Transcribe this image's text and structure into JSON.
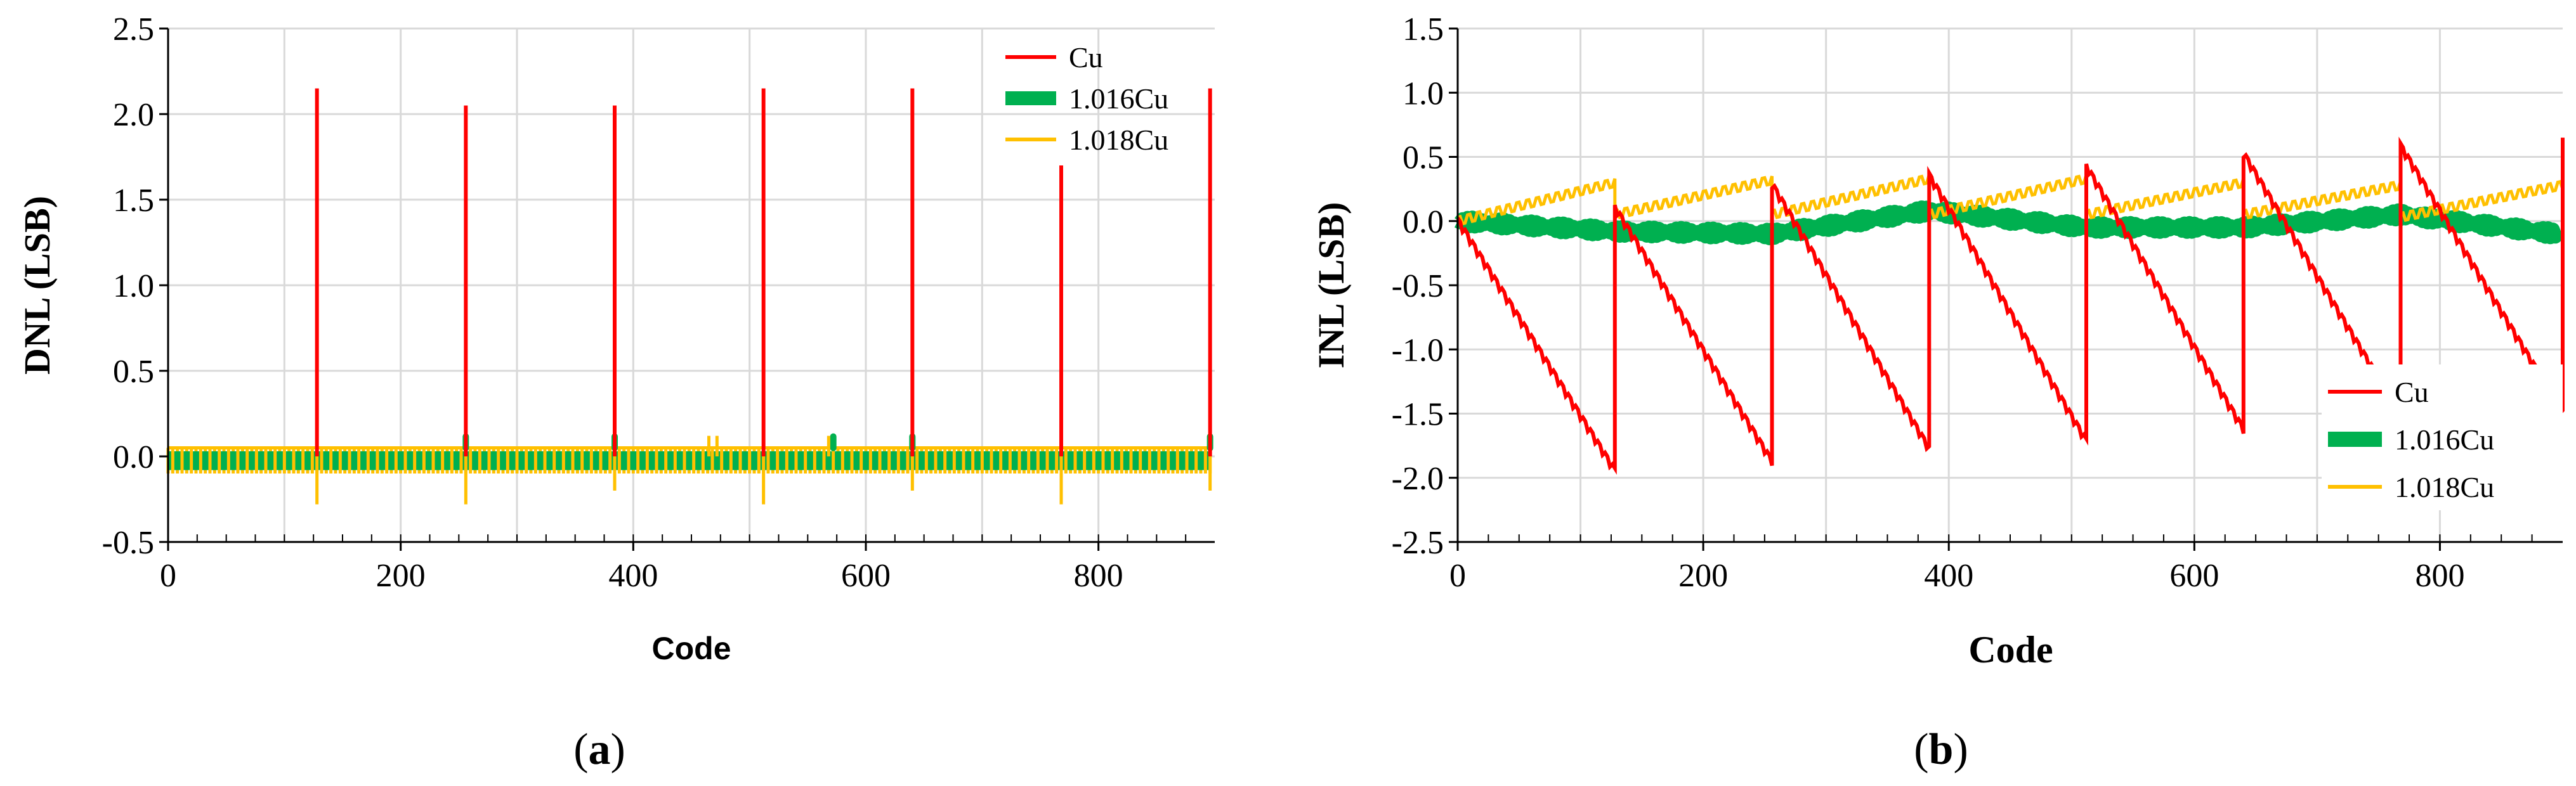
{
  "colors": {
    "cu": "#ff0000",
    "cu1016": "#00b050",
    "cu1018": "#ffc000"
  },
  "chart_data": [
    {
      "panel": "a",
      "type": "line",
      "caption_letter": "a",
      "xlabel": "Code",
      "ylabel": "DNL (LSB)",
      "xlim": [
        0,
        900
      ],
      "ylim": [
        -0.5,
        2.5
      ],
      "x_ticks": [
        0,
        200,
        400,
        600,
        800
      ],
      "y_ticks": [
        -0.5,
        0.0,
        0.5,
        1.0,
        1.5,
        2.0,
        2.5
      ],
      "y_tick_labels": [
        "-0.5",
        "0.0",
        "0.5",
        "1.0",
        "1.5",
        "2.0",
        "2.5"
      ],
      "grid": true,
      "legend_position": "top-right",
      "series": [
        {
          "name": "Cu",
          "color_key": "cu",
          "baseline": 0.0,
          "spikes": [
            [
              128,
              2.15
            ],
            [
              256,
              2.05
            ],
            [
              384,
              2.05
            ],
            [
              512,
              2.15
            ],
            [
              640,
              2.15
            ],
            [
              768,
              1.7
            ],
            [
              896,
              2.15
            ]
          ]
        },
        {
          "name": "1.016Cu",
          "color_key": "cu1016",
          "band": [
            -0.08,
            0.03
          ],
          "spikes": [
            [
              256,
              0.12
            ],
            [
              384,
              0.12
            ],
            [
              572,
              0.12
            ],
            [
              640,
              0.12
            ],
            [
              896,
              0.12
            ]
          ]
        },
        {
          "name": "1.018Cu",
          "color_key": "cu1018",
          "band": [
            -0.1,
            0.05
          ],
          "period": 8,
          "spikes": [
            [
              128,
              -0.28
            ],
            [
              256,
              -0.28
            ],
            [
              384,
              -0.2
            ],
            [
              465,
              0.12
            ],
            [
              472,
              0.12
            ],
            [
              512,
              -0.28
            ],
            [
              568,
              0.12
            ],
            [
              640,
              -0.2
            ],
            [
              768,
              -0.28
            ],
            [
              896,
              -0.2
            ]
          ]
        }
      ]
    },
    {
      "panel": "b",
      "type": "line",
      "caption_letter": "b",
      "xlabel": "Code",
      "ylabel": "INL (LSB)",
      "xlim": [
        0,
        900
      ],
      "ylim": [
        -2.5,
        1.5
      ],
      "x_ticks": [
        0,
        200,
        400,
        600,
        800
      ],
      "y_ticks": [
        -2.5,
        -2.0,
        -1.5,
        -1.0,
        -0.5,
        0.0,
        0.5,
        1.0,
        1.5
      ],
      "y_tick_labels": [
        "-2.5",
        "-2.0",
        "-1.5",
        "-1.0",
        "-0.5",
        "0.0",
        "0.5",
        "1.0",
        "1.5"
      ],
      "grid": true,
      "legend_position": "bottom-right",
      "series": [
        {
          "name": "Cu",
          "color_key": "cu",
          "period": 128,
          "segments": [
            [
              0,
              0.0,
              128,
              -1.95
            ],
            [
              128,
              0.1,
              256,
              -1.88
            ],
            [
              256,
              0.28,
              384,
              -1.78
            ],
            [
              384,
              0.35,
              512,
              -1.72
            ],
            [
              512,
              0.42,
              640,
              -1.63
            ],
            [
              640,
              0.52,
              768,
              -1.52
            ],
            [
              768,
              0.58,
              900,
              -1.5
            ]
          ],
          "final_value": 0.65
        },
        {
          "name": "1.016Cu",
          "color_key": "cu1016",
          "points": [
            [
              0,
              0.0
            ],
            [
              128,
              -0.08
            ],
            [
              256,
              -0.1
            ],
            [
              384,
              0.08
            ],
            [
              512,
              -0.05
            ],
            [
              640,
              -0.05
            ],
            [
              768,
              0.05
            ],
            [
              896,
              -0.1
            ]
          ]
        },
        {
          "name": "1.018Cu",
          "color_key": "cu1018",
          "period": 128,
          "segments": [
            [
              0,
              0.0,
              128,
              0.3
            ],
            [
              128,
              0.05,
              256,
              0.32
            ],
            [
              256,
              0.05,
              384,
              0.33
            ],
            [
              384,
              0.05,
              512,
              0.33
            ],
            [
              512,
              0.05,
              640,
              0.3
            ],
            [
              640,
              0.05,
              768,
              0.28
            ],
            [
              768,
              0.03,
              900,
              0.28
            ]
          ]
        }
      ]
    }
  ]
}
